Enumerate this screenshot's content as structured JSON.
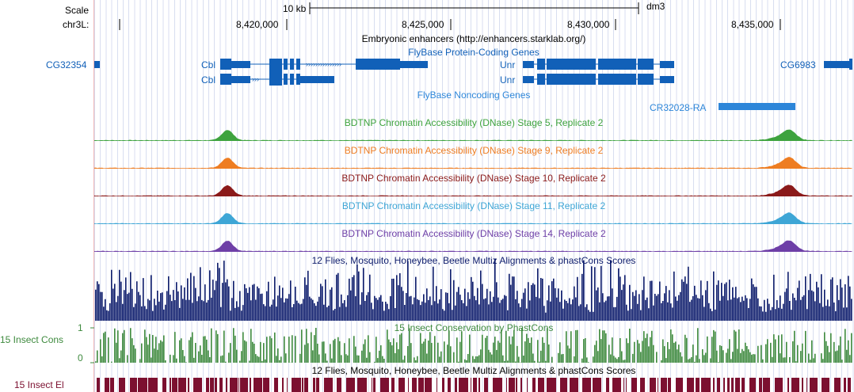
{
  "ruler": {
    "scale_label": "Scale",
    "scale_bar_label": "10 kb",
    "assembly": "dm3",
    "chrom_label": "chr3L:",
    "ticks": [
      "8,420,000",
      "8,425,000",
      "8,430,000",
      "8,435,000"
    ]
  },
  "enhancers": {
    "title": "Embryonic enhancers (http://enhancers.starklab.org/)"
  },
  "coding_genes": {
    "title": "FlyBase Protein-Coding Genes",
    "left_gene": "CG32354",
    "cbl_1": "Cbl",
    "cbl_2": "Cbl",
    "unr_1": "Unr",
    "unr_2": "Unr",
    "right_gene": "CG6983"
  },
  "noncoding_genes": {
    "title": "FlyBase Noncoding Genes",
    "gene": "CR32028-RA"
  },
  "dnase": [
    {
      "title": "BDTNP Chromatin Accessibility (DNase) Stage 5, Replicate 2",
      "color": "#3ea33e"
    },
    {
      "title": "BDTNP Chromatin Accessibility (DNase) Stage 9, Replicate 2",
      "color": "#ee7d22"
    },
    {
      "title": "BDTNP Chromatin Accessibility (DNase) Stage 10, Replicate 2",
      "color": "#8b1a1a"
    },
    {
      "title": "BDTNP Chromatin Accessibility (DNase) Stage 11, Replicate 2",
      "color": "#3ea6d6"
    },
    {
      "title": "BDTNP Chromatin Accessibility (DNase) Stage 14, Replicate 2",
      "color": "#6e3fa7"
    }
  ],
  "multiz": {
    "title": "12 Flies, Mosquito, Honeybee, Beetle Multiz Alignments & phastCons Scores",
    "color": "#0b1a6b"
  },
  "phastcons": {
    "title": "15 Insect Conservation by PhastCons",
    "side_label": "15 Insect Cons",
    "ymax": "1",
    "ymin": "0",
    "color": "#3e8a3e"
  },
  "elements": {
    "title": "12 Flies, Mosquito, Honeybee, Beetle Multiz Alignments & phastCons Scores",
    "side_label": "15 Insect El",
    "color": "#7c1030"
  },
  "colors": {
    "gene": "#1160b8",
    "noncoding": "#2d86d9"
  }
}
